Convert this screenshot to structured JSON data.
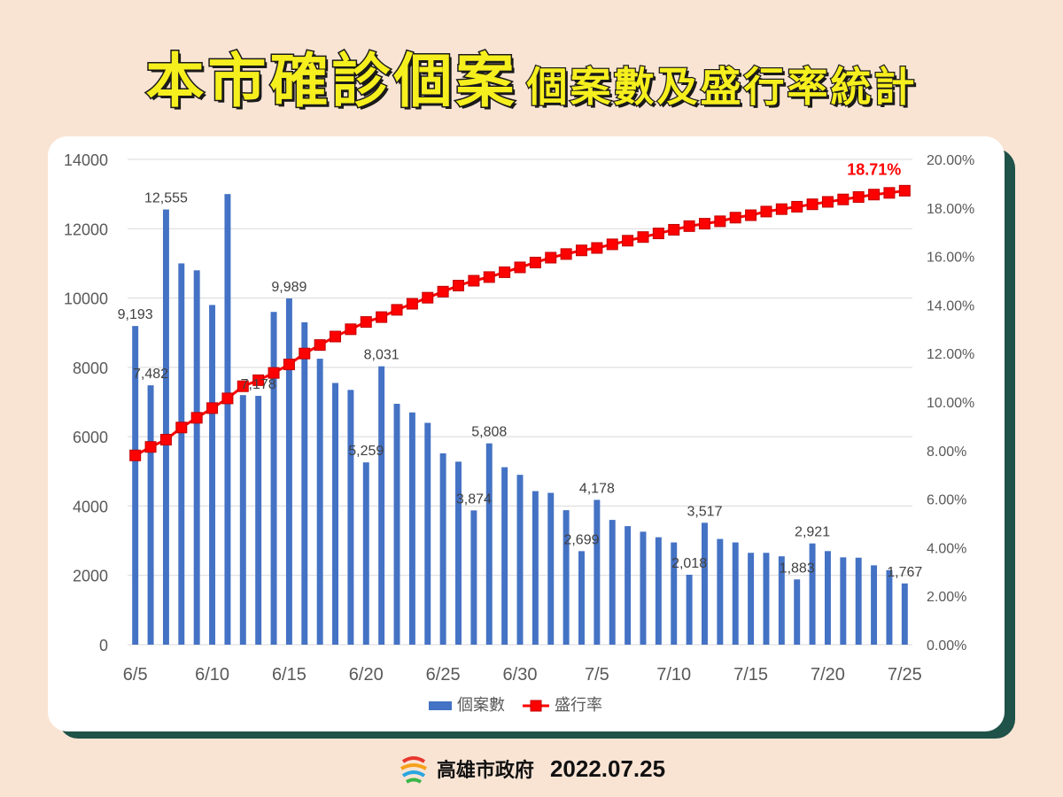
{
  "header": {
    "title_main": "本市確診個案",
    "title_sub": "個案數及盛行率統計"
  },
  "footer": {
    "org": "高雄市政府",
    "date": "2022.07.25"
  },
  "colors": {
    "bar": "#4472c4",
    "line": "#ff0000",
    "marker_edge": "#c00000",
    "title_fill": "#f6ef1e",
    "background": "#f9e4d4",
    "card_shadow": "#1f5248"
  },
  "chart_data": {
    "type": "bar",
    "x": [
      "6/5",
      "6/6",
      "6/7",
      "6/8",
      "6/9",
      "6/10",
      "6/11",
      "6/12",
      "6/13",
      "6/14",
      "6/15",
      "6/16",
      "6/17",
      "6/18",
      "6/19",
      "6/20",
      "6/21",
      "6/22",
      "6/23",
      "6/24",
      "6/25",
      "6/26",
      "6/27",
      "6/28",
      "6/29",
      "6/30",
      "7/1",
      "7/2",
      "7/3",
      "7/4",
      "7/5",
      "7/6",
      "7/7",
      "7/8",
      "7/9",
      "7/10",
      "7/11",
      "7/12",
      "7/13",
      "7/14",
      "7/15",
      "7/16",
      "7/17",
      "7/18",
      "7/19",
      "7/20",
      "7/21",
      "7/22",
      "7/23",
      "7/24",
      "7/25"
    ],
    "x_tick_labels": [
      "6/5",
      "6/10",
      "6/15",
      "6/20",
      "6/25",
      "6/30",
      "7/5",
      "7/10",
      "7/15",
      "7/20",
      "7/25"
    ],
    "y_left_ticks": [
      "0",
      "2000",
      "4000",
      "6000",
      "8000",
      "10000",
      "12000",
      "14000"
    ],
    "y_right_ticks": [
      "0.00%",
      "2.00%",
      "4.00%",
      "6.00%",
      "8.00%",
      "10.00%",
      "12.00%",
      "14.00%",
      "16.00%",
      "18.00%",
      "20.00%"
    ],
    "ylim_left": [
      0,
      14000
    ],
    "ylim_right": [
      0,
      20
    ],
    "grid": true,
    "legend_position": "bottom",
    "series": [
      {
        "name": "個案數",
        "type": "bar",
        "axis": "left",
        "values": [
          9193,
          7482,
          12555,
          11000,
          10800,
          9800,
          13000,
          7200,
          7178,
          9600,
          9989,
          9300,
          8250,
          7550,
          7350,
          5259,
          8031,
          6950,
          6700,
          6400,
          5520,
          5280,
          3874,
          5808,
          5120,
          4900,
          4430,
          4380,
          3880,
          2699,
          4178,
          3600,
          3420,
          3260,
          3100,
          2950,
          2018,
          3517,
          3050,
          2950,
          2650,
          2650,
          2550,
          1883,
          2921,
          2700,
          2520,
          2510,
          2290,
          2150,
          1767
        ]
      },
      {
        "name": "盛行率",
        "type": "line",
        "axis": "right",
        "values": [
          7.8,
          8.15,
          8.45,
          8.95,
          9.35,
          9.75,
          10.15,
          10.65,
          10.9,
          11.2,
          11.55,
          12.0,
          12.35,
          12.7,
          13.0,
          13.3,
          13.5,
          13.8,
          14.05,
          14.3,
          14.55,
          14.8,
          15.0,
          15.15,
          15.35,
          15.55,
          15.75,
          15.95,
          16.1,
          16.25,
          16.35,
          16.5,
          16.65,
          16.8,
          16.95,
          17.1,
          17.25,
          17.35,
          17.45,
          17.6,
          17.7,
          17.85,
          17.95,
          18.05,
          18.15,
          18.25,
          18.35,
          18.45,
          18.55,
          18.62,
          18.71
        ]
      }
    ],
    "data_labels": [
      {
        "index": 0,
        "text": "9,193"
      },
      {
        "index": 1,
        "text": "7,482"
      },
      {
        "index": 2,
        "text": "12,555"
      },
      {
        "index": 8,
        "text": "7,178"
      },
      {
        "index": 10,
        "text": "9,989"
      },
      {
        "index": 15,
        "text": "5,259"
      },
      {
        "index": 16,
        "text": "8,031"
      },
      {
        "index": 22,
        "text": "3,874"
      },
      {
        "index": 23,
        "text": "5,808"
      },
      {
        "index": 29,
        "text": "2,699"
      },
      {
        "index": 30,
        "text": "4,178"
      },
      {
        "index": 36,
        "text": "2,018"
      },
      {
        "index": 37,
        "text": "3,517"
      },
      {
        "index": 43,
        "text": "1,883"
      },
      {
        "index": 44,
        "text": "2,921"
      },
      {
        "index": 50,
        "text": "1,767"
      }
    ],
    "line_end_label": "18.71%"
  }
}
